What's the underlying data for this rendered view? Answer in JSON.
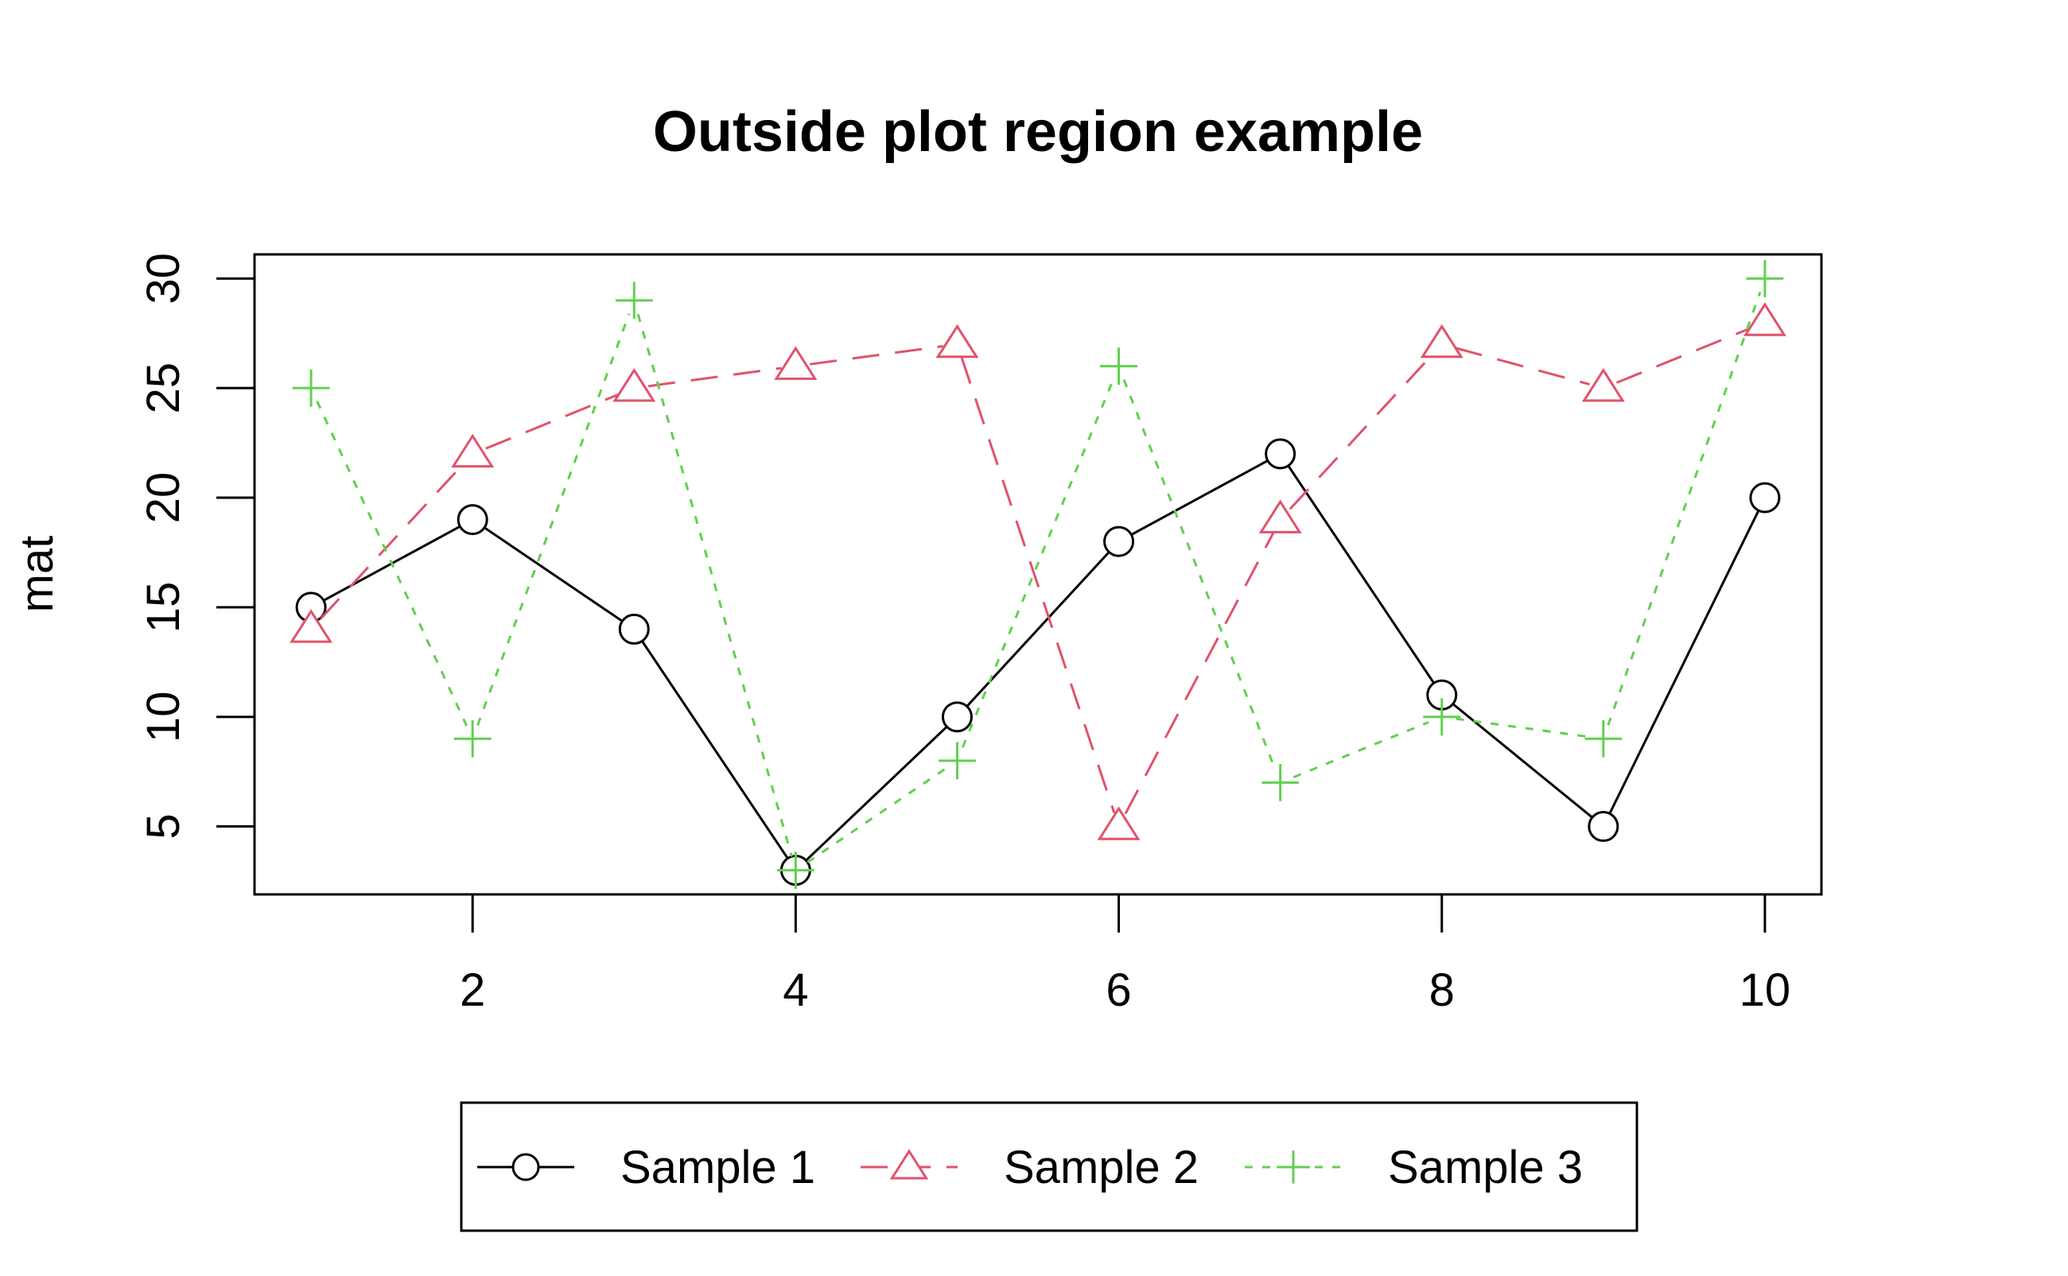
{
  "chart_data": {
    "type": "line",
    "title": "Outside plot region example",
    "xlabel": "",
    "ylabel": "mat",
    "xlim": [
      0.65,
      10.35
    ],
    "ylim": [
      1.9,
      31.1
    ],
    "x_ticks": [
      2,
      4,
      6,
      8,
      10
    ],
    "y_ticks": [
      5,
      10,
      15,
      20,
      25,
      30
    ],
    "x": [
      1,
      2,
      3,
      4,
      5,
      6,
      7,
      8,
      9,
      10
    ],
    "grid": false,
    "legend_position": "bottom, outside plot region",
    "series": [
      {
        "name": "Sample 1",
        "values": [
          15,
          19,
          14,
          3,
          10,
          18,
          22,
          11,
          5,
          20
        ],
        "color": "#000000",
        "marker": "circle",
        "line": "solid"
      },
      {
        "name": "Sample 2",
        "values": [
          14,
          22,
          25,
          26,
          27,
          5,
          19,
          27,
          25,
          28
        ],
        "color": "#DF536B",
        "marker": "triangle",
        "line": "dashed"
      },
      {
        "name": "Sample 3",
        "values": [
          25,
          9,
          29,
          3,
          8,
          26,
          7,
          10,
          9,
          30
        ],
        "color": "#61D04F",
        "marker": "plus",
        "line": "dotted"
      }
    ]
  }
}
